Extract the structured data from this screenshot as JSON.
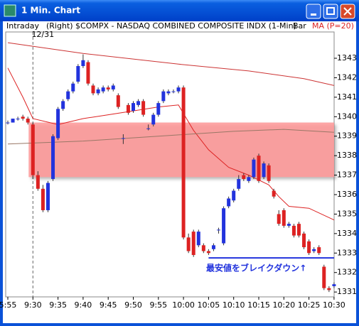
{
  "window_title": "1 Min. Chart",
  "header": {
    "left": "Intraday",
    "symbol": "(Right) $COMPX - NASDAQ COMBINED COMPOSITE INDX (1-Min)",
    "style": "Bar"
  },
  "chart_data": {
    "type": "candlestick",
    "categories": [
      "5:55",
      null,
      null,
      null,
      null,
      "9:30",
      null,
      null,
      null,
      null,
      "9:35",
      null,
      null,
      null,
      null,
      "9:40",
      null,
      null,
      null,
      null,
      "9:45",
      null,
      null,
      null,
      null,
      "9:50",
      null,
      null,
      null,
      null,
      "9:55",
      null,
      null,
      null,
      null,
      "10:00",
      null,
      null,
      null,
      null,
      "10:05",
      null,
      null,
      null,
      null,
      "10:10",
      null,
      null,
      null,
      null,
      "10:15",
      null,
      null,
      null,
      null,
      "10:20",
      null,
      null,
      null,
      null,
      "10:25",
      null,
      null,
      null,
      null,
      "10:30"
    ],
    "open": [
      1339.7,
      1339.7,
      1339.9,
      1340.0,
      1339.9,
      1339.6,
      1337.0,
      1336.3,
      1335.2,
      1336.8,
      1338.9,
      1340.4,
      1340.9,
      1341.3,
      1341.8,
      1342.6,
      1342.8,
      1341.6,
      1341.2,
      1341.3,
      1341.5,
      1341.4,
      1341.1,
      1338.9,
      1340.6,
      1340.3,
      1340.6,
      1340.8,
      1339.4,
      1339.6,
      1340.1,
      1340.8,
      1341.2,
      1341.3,
      1341.3,
      1341.5,
      1333.8,
      1334.1,
      1333.4,
      1333.4,
      1333.1,
      1333.2,
      1334.2,
      1333.5,
      1335.4,
      1335.7,
      1336.3,
      1337.0,
      1336.7,
      1336.9,
      1338.0,
      1336.9,
      1337.5,
      1336.2,
      1335.0,
      1335.2,
      1334.4,
      1334.4,
      1334.5,
      1334.0,
      1333.6,
      1333.1,
      1333.3,
      1332.3,
      1331.2,
      1331.3
    ],
    "high": [
      1339.8,
      1339.9,
      1340.0,
      1340.1,
      1340.0,
      1339.7,
      1337.2,
      1336.5,
      1336.7,
      1339.1,
      1340.5,
      1340.9,
      1341.4,
      1341.8,
      1342.7,
      1343.2,
      1342.9,
      1341.7,
      1341.5,
      1341.6,
      1341.6,
      1341.7,
      1341.2,
      1339.1,
      1340.7,
      1340.8,
      1340.9,
      1340.9,
      1339.6,
      1340.2,
      1340.8,
      1341.4,
      1341.4,
      1341.4,
      1341.6,
      1341.6,
      1334.0,
      1334.2,
      1334.2,
      1333.5,
      1333.2,
      1333.5,
      1334.3,
      1335.4,
      1335.9,
      1336.3,
      1337.0,
      1337.1,
      1337.0,
      1337.9,
      1338.1,
      1337.7,
      1337.6,
      1336.3,
      1335.2,
      1335.3,
      1334.6,
      1334.5,
      1334.6,
      1334.1,
      1333.7,
      1333.3,
      1333.4,
      1332.4,
      1331.3,
      1331.5
    ],
    "low": [
      1339.6,
      1339.7,
      1339.8,
      1339.8,
      1339.6,
      1336.8,
      1336.2,
      1335.1,
      1335.1,
      1336.7,
      1338.8,
      1340.3,
      1340.8,
      1341.2,
      1341.7,
      1342.5,
      1341.6,
      1341.1,
      1341.1,
      1341.2,
      1341.3,
      1341.3,
      1340.4,
      1338.6,
      1340.1,
      1340.2,
      1340.5,
      1340.0,
      1339.3,
      1339.5,
      1340.0,
      1340.7,
      1341.1,
      1341.2,
      1341.2,
      1333.7,
      1333.0,
      1332.8,
      1333.3,
      1333.0,
      1332.9,
      1333.1,
      1334.0,
      1333.4,
      1335.3,
      1335.6,
      1336.2,
      1336.7,
      1336.6,
      1336.8,
      1336.6,
      1336.8,
      1336.6,
      1335.8,
      1334.4,
      1334.3,
      1334.3,
      1333.8,
      1333.8,
      1333.2,
      1332.9,
      1333.0,
      1332.9,
      1331.1,
      1331.0,
      1331.2
    ],
    "close": [
      1339.7,
      1339.9,
      1339.9,
      1339.9,
      1339.7,
      1337.0,
      1336.3,
      1335.2,
      1336.6,
      1339.0,
      1340.4,
      1340.8,
      1341.3,
      1341.7,
      1342.6,
      1342.9,
      1341.7,
      1341.2,
      1341.4,
      1341.5,
      1341.4,
      1341.6,
      1340.5,
      1338.9,
      1340.2,
      1340.7,
      1340.8,
      1340.1,
      1339.4,
      1340.1,
      1340.7,
      1341.3,
      1341.3,
      1341.3,
      1341.5,
      1333.8,
      1333.1,
      1332.9,
      1334.1,
      1333.1,
      1333.0,
      1333.4,
      1334.2,
      1335.3,
      1335.8,
      1336.2,
      1336.8,
      1336.8,
      1336.9,
      1337.8,
      1336.7,
      1337.6,
      1336.7,
      1335.9,
      1334.5,
      1334.4,
      1334.5,
      1333.9,
      1333.9,
      1333.3,
      1333.0,
      1333.2,
      1333.0,
      1331.2,
      1331.1,
      1331.4
    ],
    "up_color": "#2233dd",
    "down_color": "#dd2222",
    "lines": [
      {
        "name": "MA (P=20)",
        "color": "#dd2222",
        "x": [
          0,
          3,
          5,
          10,
          15,
          20,
          25,
          30,
          34,
          37,
          40,
          44,
          48,
          52,
          54,
          56,
          60,
          65
        ],
        "values": [
          1342.5,
          1341.0,
          1339.9,
          1339.6,
          1339.9,
          1340.1,
          1340.3,
          1340.5,
          1340.6,
          1339.3,
          1338.3,
          1337.4,
          1337.0,
          1336.5,
          1335.9,
          1335.4,
          1335.3,
          1334.7
        ]
      },
      {
        "color": "#cc3333",
        "x": [
          0,
          15,
          34,
          48,
          59,
          65
        ],
        "values": [
          1343.8,
          1343.25,
          1342.7,
          1342.35,
          1341.95,
          1341.6
        ]
      },
      {
        "color": "#997766",
        "x": [
          0,
          15,
          30,
          45,
          55,
          65
        ],
        "values": [
          1338.6,
          1338.75,
          1339.0,
          1339.25,
          1339.35,
          1339.2
        ]
      }
    ],
    "band": {
      "low": 1336.9,
      "high": 1339.7,
      "color": "#ff9999"
    },
    "session_break": {
      "index": 5,
      "label": "12/31"
    },
    "hline": {
      "value": 1332.75,
      "from": 40,
      "color": "#2233dd"
    },
    "annotation": "最安値をブレイクダウン↑",
    "ylim": [
      1330.75,
      1344.35
    ],
    "yticks": [
      1331,
      1332,
      1333,
      1334,
      1335,
      1336,
      1337,
      1338,
      1339,
      1340,
      1341,
      1342,
      1343
    ]
  }
}
